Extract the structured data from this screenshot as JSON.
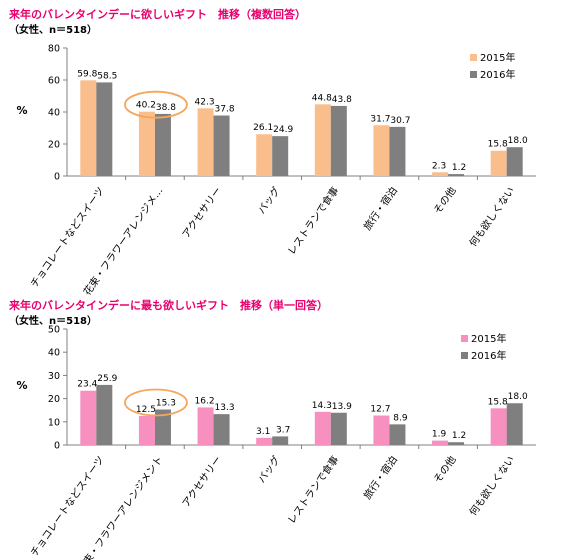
{
  "charts": [
    {
      "title": "来年のバレンタインデーに欲しいギフト　推移（複数回答）",
      "subtitle": "（女性、n＝518）"
    },
    {
      "title": "来年のバレンタインデーに最も欲しいギフト　推移（単一回答）",
      "subtitle": "（女性、n＝518）"
    }
  ],
  "colors": {
    "title": "#e8006e",
    "chart1_2015": "#f9be8c",
    "chart2_2015": "#f78fbf",
    "series_2016": "#7f7f7f",
    "highlight_oval": "#f6a55a"
  },
  "chart_data": [
    {
      "type": "bar",
      "title": "来年のバレンタインデーに欲しいギフト　推移（複数回答）",
      "subtitle": "（女性、n＝518）",
      "ylabel": "%",
      "ylim": [
        0,
        80
      ],
      "yticks": [
        0,
        20,
        40,
        60,
        80
      ],
      "grid": false,
      "legend_position": "top-right",
      "categories": [
        "チョコレートなどスイーツ",
        "花束・フラワーアレンジメ…",
        "アクセサリー",
        "バッグ",
        "レストランで食事",
        "旅行・宿泊",
        "その他",
        "何も欲しくない"
      ],
      "series": [
        {
          "name": "2015年",
          "color": "#f9be8c",
          "values": [
            59.8,
            40.2,
            42.3,
            26.1,
            44.8,
            31.7,
            2.3,
            15.8
          ]
        },
        {
          "name": "2016年",
          "color": "#7f7f7f",
          "values": [
            58.5,
            38.8,
            37.8,
            24.9,
            43.8,
            30.7,
            1.2,
            18.0
          ]
        }
      ],
      "highlighted_category": "花束・フラワーアレンジメ…"
    },
    {
      "type": "bar",
      "title": "来年のバレンタインデーに最も欲しいギフト　推移（単一回答）",
      "subtitle": "（女性、n＝518）",
      "ylabel": "%",
      "ylim": [
        0,
        50
      ],
      "yticks": [
        0,
        10,
        20,
        30,
        40,
        50
      ],
      "grid": false,
      "legend_position": "top-right",
      "categories": [
        "チョコレートなどスイーツ",
        "花束・フラワーアレンジメント",
        "アクセサリー",
        "バッグ",
        "レストランで食事",
        "旅行・宿泊",
        "その他",
        "何も欲しくない"
      ],
      "series": [
        {
          "name": "2015年",
          "color": "#f78fbf",
          "values": [
            23.4,
            12.5,
            16.2,
            3.1,
            14.3,
            12.7,
            1.9,
            15.8
          ]
        },
        {
          "name": "2016年",
          "color": "#7f7f7f",
          "values": [
            25.9,
            15.3,
            13.3,
            3.7,
            13.9,
            8.9,
            1.2,
            18.0
          ]
        }
      ],
      "highlighted_category": "花束・フラワーアレンジメント"
    }
  ]
}
